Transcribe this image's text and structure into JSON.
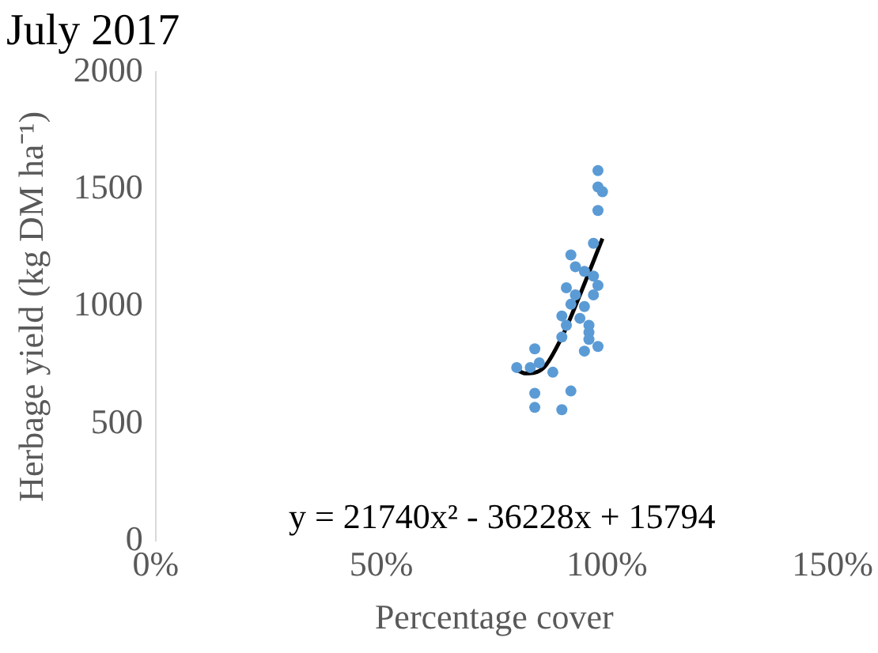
{
  "chart_data": {
    "type": "scatter",
    "title": "July 2017",
    "xlabel": "Percentage cover",
    "ylabel": "Herbage yield (kg DM ha⁻¹)",
    "xlim": [
      0,
      1.5
    ],
    "xticks": [
      {
        "value": 0,
        "label": "0%"
      },
      {
        "value": 0.5,
        "label": "50%"
      },
      {
        "value": 1,
        "label": "100%"
      },
      {
        "value": 1.5,
        "label": "150%"
      }
    ],
    "ylim": [
      0,
      2000
    ],
    "yticks": [
      0,
      500,
      1000,
      1500,
      2000
    ],
    "grid": false,
    "legend": false,
    "marker": "circle",
    "series": [
      {
        "color": "#5b9bd5",
        "x": [
          0.98,
          0.98,
          0.99,
          0.98,
          0.97,
          0.92,
          0.93,
          0.95,
          0.97,
          0.98,
          0.97,
          0.91,
          0.93,
          0.92,
          0.95,
          0.9,
          0.94,
          0.96,
          0.91,
          0.9,
          0.96,
          0.96,
          0.98,
          0.95,
          0.84,
          0.85,
          0.8,
          0.83,
          0.88,
          0.92,
          0.84,
          0.84,
          0.9
        ],
        "values": [
          1580,
          1510,
          1490,
          1410,
          1270,
          1220,
          1170,
          1150,
          1130,
          1090,
          1050,
          1080,
          1050,
          1010,
          1000,
          960,
          950,
          920,
          920,
          870,
          890,
          860,
          830,
          810,
          820,
          760,
          740,
          740,
          720,
          640,
          630,
          570,
          560
        ]
      },
      {
        "type": "line",
        "color": "#000000",
        "marker": "none",
        "x": [
          0.8,
          0.82,
          0.86,
          0.9,
          0.94,
          0.99
        ],
        "values": [
          730,
          715,
          740,
          870,
          1050,
          1290
        ]
      }
    ],
    "annotations": [
      "y = 21740x² - 36228x + 15794"
    ]
  }
}
